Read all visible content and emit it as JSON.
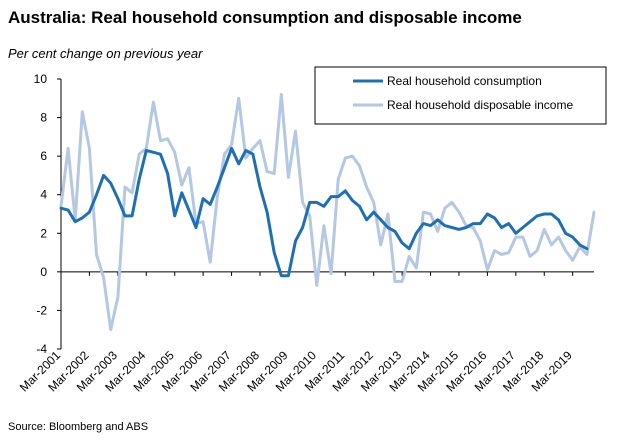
{
  "chart_data": {
    "type": "line",
    "title": "Australia: Real household consumption and disposable income",
    "ylabel": "Per cent change on previous year",
    "xlabel": "",
    "source": "Source: Bloomberg and ABS",
    "ylim": [
      -4,
      10
    ],
    "yticks": [
      -4,
      -2,
      0,
      2,
      4,
      6,
      8,
      10
    ],
    "x_tick_labels": [
      "Mar-2001",
      "Mar-2002",
      "Mar-2003",
      "Mar-2004",
      "Mar-2005",
      "Mar-2006",
      "Mar-2007",
      "Mar-2008",
      "Mar-2009",
      "Mar-2010",
      "Mar-2011",
      "Mar-2012",
      "Mar-2013",
      "Mar-2014",
      "Mar-2015",
      "Mar-2016",
      "Mar-2017",
      "Mar-2018",
      "Mar-2019"
    ],
    "x_start": "Mar-2001",
    "frequency": "quarterly",
    "legend_position": "top-right",
    "colors": {
      "consumption": "#1F6FB4",
      "income": "#B4C7E3",
      "axis": "#000000",
      "legend_border": "#000000"
    },
    "series": [
      {
        "name": "Real household consumption",
        "key": "consumption",
        "values": [
          3.3,
          3.2,
          2.6,
          2.8,
          3.1,
          4.0,
          5.0,
          4.6,
          3.8,
          2.9,
          2.9,
          4.8,
          6.3,
          6.2,
          6.1,
          5.1,
          2.9,
          4.1,
          3.2,
          2.3,
          3.8,
          3.5,
          4.4,
          5.4,
          6.4,
          5.6,
          6.3,
          6.1,
          4.4,
          3.1,
          1.0,
          -0.2,
          -0.2,
          1.6,
          2.3,
          3.6,
          3.6,
          3.4,
          3.9,
          3.9,
          4.2,
          3.7,
          3.4,
          2.7,
          3.1,
          2.7,
          2.3,
          2.1,
          1.5,
          1.2,
          2.0,
          2.5,
          2.4,
          2.7,
          2.4,
          2.3,
          2.2,
          2.3,
          2.5,
          2.5,
          3.0,
          2.8,
          2.3,
          2.5,
          2.0,
          2.3,
          2.6,
          2.9,
          3.0,
          3.0,
          2.7,
          2.0,
          1.8,
          1.4,
          1.2
        ]
      },
      {
        "name": "Real household disposable income",
        "key": "income",
        "values": [
          3.4,
          6.4,
          2.7,
          8.3,
          6.4,
          0.9,
          -0.3,
          -3.0,
          -1.3,
          4.4,
          4.1,
          6.1,
          6.4,
          8.8,
          6.8,
          6.9,
          6.2,
          4.5,
          5.4,
          2.5,
          2.6,
          0.5,
          3.9,
          6.1,
          6.6,
          9.0,
          5.9,
          6.4,
          6.8,
          5.2,
          5.1,
          9.2,
          4.9,
          7.3,
          3.6,
          2.9,
          -0.7,
          2.4,
          -0.1,
          4.8,
          5.9,
          6.0,
          5.5,
          4.4,
          3.6,
          1.4,
          3.0,
          -0.5,
          -0.5,
          0.8,
          0.2,
          3.1,
          3.0,
          2.1,
          3.3,
          3.6,
          3.1,
          2.4,
          2.3,
          1.6,
          0.1,
          1.1,
          0.9,
          1.0,
          1.8,
          1.8,
          0.8,
          1.1,
          2.2,
          1.4,
          1.8,
          1.1,
          0.6,
          1.3,
          0.9,
          3.1
        ]
      }
    ]
  }
}
